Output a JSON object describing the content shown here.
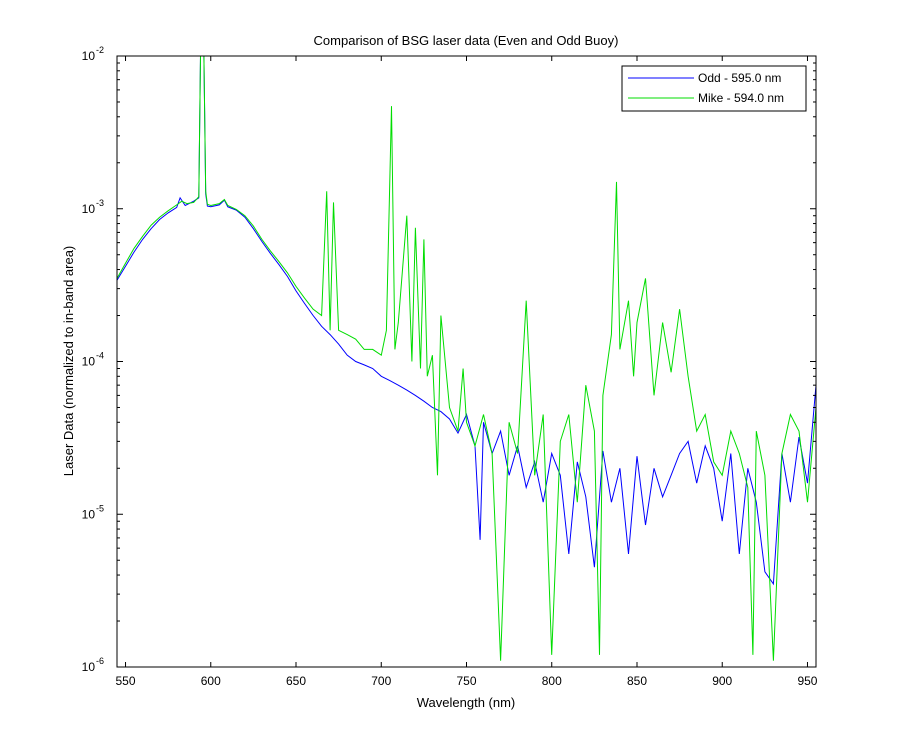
{
  "chart_data": {
    "type": "line",
    "title": "Comparison of BSG laser data (Even and Odd Buoy)",
    "xlabel": "Wavelength (nm)",
    "ylabel": "Laser Data (normalized to in-band area)",
    "xlim": [
      545,
      955
    ],
    "ylim": [
      1e-06,
      0.01
    ],
    "yscale": "log",
    "x_ticks": [
      550,
      600,
      650,
      700,
      750,
      800,
      850,
      900,
      950
    ],
    "y_ticks": [
      {
        "value": 1e-06,
        "base": "10",
        "exp": "-6"
      },
      {
        "value": 1e-05,
        "base": "10",
        "exp": "-5"
      },
      {
        "value": 0.0001,
        "base": "10",
        "exp": "-4"
      },
      {
        "value": 0.001,
        "base": "10",
        "exp": "-3"
      },
      {
        "value": 0.01,
        "base": "10",
        "exp": "-2"
      }
    ],
    "grid": false,
    "legend_position": "top-right",
    "series": [
      {
        "name": "Odd - 595.0 nm",
        "color": "#0000ff",
        "x": [
          545,
          550,
          555,
          560,
          565,
          570,
          575,
          580,
          582,
          585,
          590,
          593,
          594,
          595,
          596,
          597,
          598,
          600,
          605,
          608,
          610,
          615,
          620,
          625,
          630,
          635,
          640,
          645,
          650,
          655,
          660,
          665,
          670,
          675,
          680,
          685,
          690,
          695,
          700,
          705,
          710,
          715,
          720,
          725,
          730,
          735,
          740,
          745,
          750,
          755,
          758,
          760,
          765,
          770,
          775,
          780,
          785,
          790,
          795,
          800,
          805,
          810,
          815,
          820,
          825,
          830,
          835,
          840,
          845,
          850,
          855,
          860,
          865,
          870,
          875,
          880,
          885,
          890,
          895,
          900,
          905,
          910,
          915,
          920,
          925,
          930,
          935,
          940,
          945,
          950,
          955
        ],
        "y": [
          0.00034,
          0.00042,
          0.00052,
          0.00063,
          0.00074,
          0.00085,
          0.00094,
          0.00102,
          0.00118,
          0.00105,
          0.00112,
          0.00118,
          0.01,
          0.01,
          0.01,
          0.00125,
          0.00104,
          0.00103,
          0.00106,
          0.00114,
          0.00103,
          0.00098,
          0.00088,
          0.00074,
          0.00061,
          0.00051,
          0.00043,
          0.00036,
          0.00029,
          0.00024,
          0.0002,
          0.00017,
          0.00015,
          0.00013,
          0.00011,
          0.0001,
          9.5e-05,
          9e-05,
          8e-05,
          7.5e-05,
          7e-05,
          6.5e-05,
          6e-05,
          5.5e-05,
          5e-05,
          4.7e-05,
          4.2e-05,
          3.4e-05,
          4.5e-05,
          2.8e-05,
          6.8e-06,
          4e-05,
          2.5e-05,
          3.5e-05,
          1.8e-05,
          2.8e-05,
          1.5e-05,
          2.2e-05,
          1.2e-05,
          2.5e-05,
          1.8e-05,
          5.5e-06,
          2.2e-05,
          1.3e-05,
          4.5e-06,
          2.6e-05,
          1.2e-05,
          2e-05,
          5.5e-06,
          2.4e-05,
          8.5e-06,
          2e-05,
          1.3e-05,
          1.8e-05,
          2.5e-05,
          3e-05,
          1.6e-05,
          2.8e-05,
          2e-05,
          9e-06,
          2.5e-05,
          5.5e-06,
          2e-05,
          1.2e-05,
          4.2e-06,
          3.5e-06,
          2.5e-05,
          1.2e-05,
          3.2e-05,
          1.6e-05,
          7e-05
        ]
      },
      {
        "name": "Mike - 594.0 nm",
        "color": "#00dd00",
        "x": [
          545,
          550,
          555,
          560,
          565,
          570,
          575,
          580,
          583,
          586,
          590,
          593,
          594,
          595,
          596,
          597,
          598,
          600,
          605,
          608,
          610,
          615,
          620,
          625,
          630,
          635,
          640,
          645,
          650,
          655,
          660,
          665,
          668,
          670,
          672,
          675,
          680,
          685,
          690,
          695,
          700,
          703,
          706,
          708,
          710,
          715,
          718,
          720,
          723,
          725,
          727,
          730,
          733,
          735,
          740,
          745,
          748,
          750,
          755,
          760,
          765,
          770,
          775,
          780,
          785,
          790,
          795,
          800,
          805,
          810,
          815,
          820,
          825,
          828,
          830,
          835,
          838,
          840,
          845,
          848,
          850,
          855,
          860,
          865,
          870,
          875,
          880,
          885,
          890,
          895,
          900,
          905,
          910,
          915,
          918,
          920,
          925,
          930,
          935,
          940,
          945,
          950,
          955
        ],
        "y": [
          0.00035,
          0.00044,
          0.00055,
          0.00066,
          0.00078,
          0.00088,
          0.00097,
          0.00106,
          0.00112,
          0.00108,
          0.0011,
          0.0012,
          0.01,
          0.01,
          0.01,
          0.0013,
          0.00107,
          0.00105,
          0.00108,
          0.00115,
          0.00105,
          0.00099,
          0.0009,
          0.00077,
          0.00063,
          0.00053,
          0.00045,
          0.00038,
          0.00031,
          0.00026,
          0.00022,
          0.0002,
          0.0013,
          0.00016,
          0.0011,
          0.00016,
          0.00015,
          0.00014,
          0.00012,
          0.00012,
          0.00011,
          0.00016,
          0.0047,
          0.00012,
          0.00018,
          0.0009,
          0.0001,
          0.00075,
          9e-05,
          0.00063,
          8e-05,
          0.00011,
          1.8e-05,
          0.0002,
          5e-05,
          3.5e-05,
          9e-05,
          4e-05,
          2.8e-05,
          4.5e-05,
          2.5e-05,
          1.1e-06,
          4e-05,
          2.5e-05,
          0.00025,
          1.8e-05,
          4.5e-05,
          1.2e-06,
          3e-05,
          4.5e-05,
          1.2e-05,
          7e-05,
          3.5e-05,
          1.2e-06,
          6e-05,
          0.00015,
          0.0015,
          0.00012,
          0.00025,
          8e-05,
          0.00018,
          0.00035,
          6e-05,
          0.00018,
          8.5e-05,
          0.00022,
          8e-05,
          3.5e-05,
          4.5e-05,
          2.2e-05,
          1.8e-05,
          3.5e-05,
          2.5e-05,
          1.5e-05,
          1.2e-06,
          3.5e-05,
          1.8e-05,
          1.1e-06,
          2.5e-05,
          4.5e-05,
          3.5e-05,
          1.2e-05,
          5e-05
        ]
      }
    ]
  }
}
